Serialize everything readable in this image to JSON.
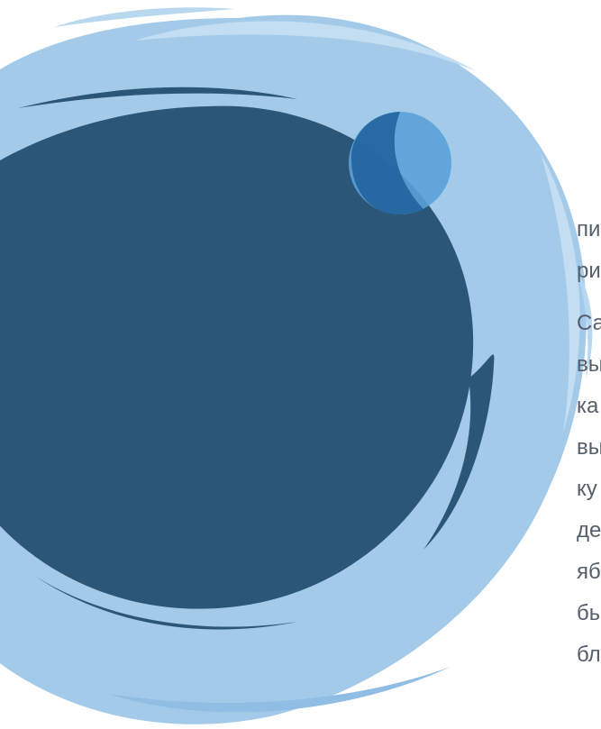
{
  "graphic": {
    "name": "brush-circle-illustration",
    "colors": {
      "outer_ring": "#9fc9e8",
      "outer_ring_light": "#b8d8ef",
      "inner_circle": "#2c5677",
      "accent_dot": "#5aa1d8",
      "accent_dot_overlap": "#24609c"
    }
  },
  "text": {
    "paragraph1": [
      "пи",
      "ри"
    ],
    "paragraph2": [
      "Са",
      "вы",
      "ка",
      "вы",
      "ку",
      "де",
      "яб",
      "бы",
      "бл"
    ]
  }
}
